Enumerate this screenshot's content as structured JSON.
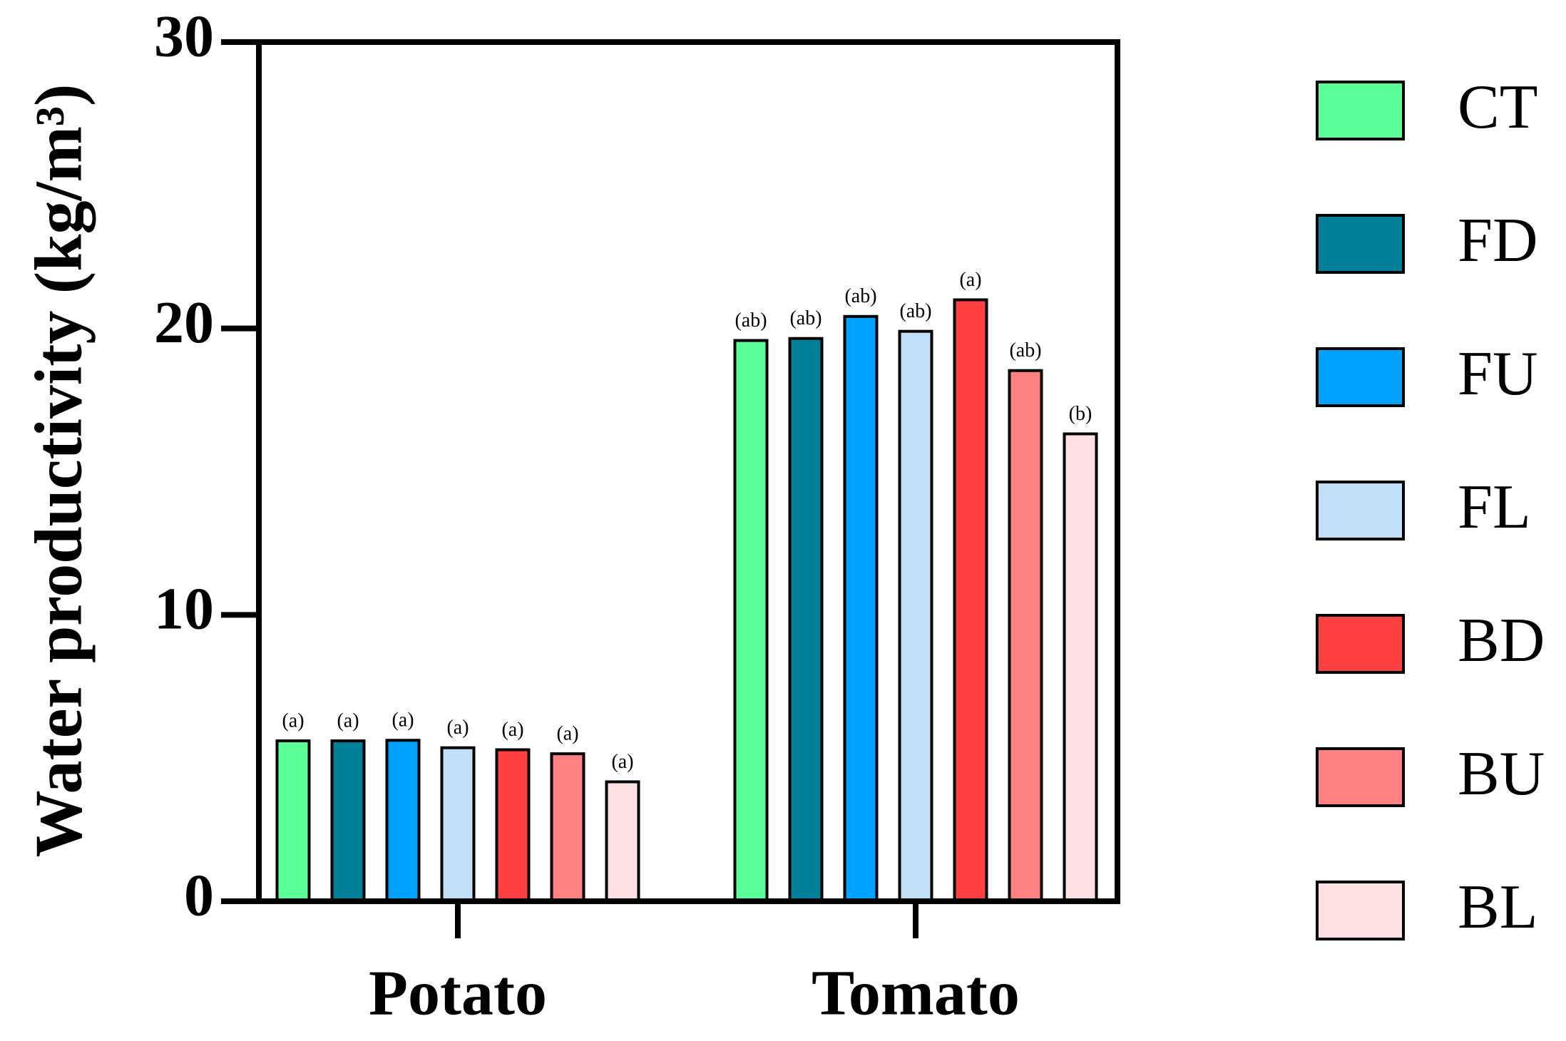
{
  "chart_data": {
    "type": "bar",
    "y_label": "Water productivity (kg/m³)",
    "categories": [
      "Potato",
      "Tomato"
    ],
    "series": [
      {
        "name": "CT",
        "color": "#5bff98",
        "values": [
          5.6,
          19.58
        ],
        "annotations": [
          "(a)",
          "(ab)"
        ]
      },
      {
        "name": "FD",
        "color": "#007f98",
        "values": [
          5.6,
          19.65
        ],
        "annotations": [
          "(a)",
          "(ab)"
        ]
      },
      {
        "name": "FU",
        "color": "#00a2ff",
        "values": [
          5.62,
          20.42
        ],
        "annotations": [
          "(a)",
          "(ab)"
        ]
      },
      {
        "name": "FL",
        "color": "#c2dff9",
        "values": [
          5.36,
          19.9
        ],
        "annotations": [
          "(a)",
          "(ab)"
        ]
      },
      {
        "name": "BD",
        "color": "#ff4040",
        "values": [
          5.29,
          21.0
        ],
        "annotations": [
          "(a)",
          "(a)"
        ]
      },
      {
        "name": "BU",
        "color": "#ff8181",
        "values": [
          5.15,
          18.53
        ],
        "annotations": [
          "(a)",
          "(ab)"
        ]
      },
      {
        "name": "BL",
        "color": "#ffe0e3",
        "values": [
          4.17,
          16.32
        ],
        "annotations": [
          "(a)",
          "(b)"
        ]
      }
    ],
    "ylim": [
      0,
      30
    ],
    "yticks": [
      0,
      10,
      20,
      30
    ]
  }
}
